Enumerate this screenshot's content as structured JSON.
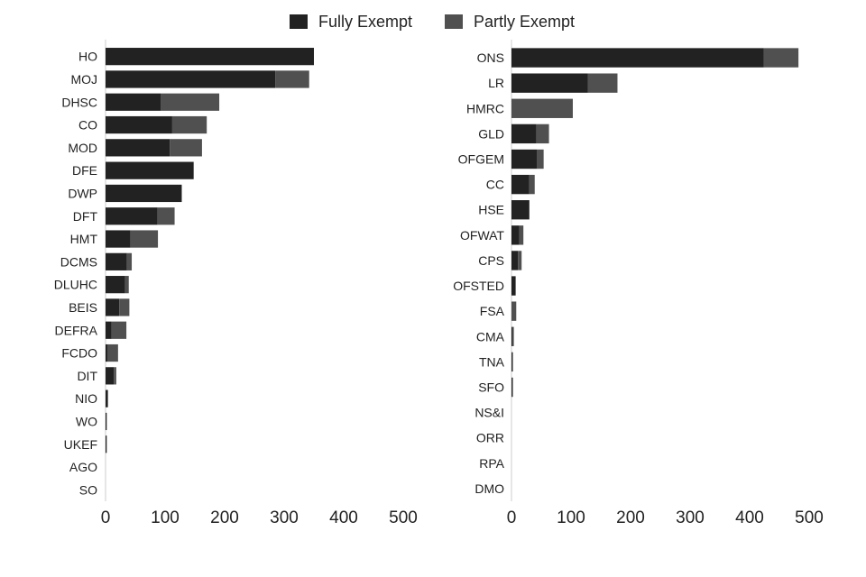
{
  "legend": {
    "fully_label": "Fully Exempt",
    "partly_label": "Partly Exempt"
  },
  "colors": {
    "fully": "#222222",
    "partly": "#505050",
    "axis": "#cccccc"
  },
  "chart_data": [
    {
      "type": "bar",
      "orientation": "horizontal",
      "stacked": true,
      "categories": [
        "HO",
        "MOJ",
        "DHSC",
        "CO",
        "MOD",
        "DFE",
        "DWP",
        "DFT",
        "HMT",
        "DCMS",
        "DLUHC",
        "BEIS",
        "DEFRA",
        "FCDO",
        "DIT",
        "NIO",
        "WO",
        "UKEF",
        "AGO",
        "SO"
      ],
      "series": [
        {
          "name": "Fully Exempt",
          "values": [
            350,
            285,
            93,
            112,
            108,
            148,
            128,
            87,
            42,
            36,
            33,
            23,
            10,
            3,
            14,
            4,
            2,
            2,
            0,
            0
          ]
        },
        {
          "name": "Partly Exempt",
          "values": [
            0,
            57,
            98,
            58,
            54,
            0,
            0,
            29,
            46,
            8,
            6,
            17,
            25,
            18,
            4,
            0,
            0,
            0,
            0,
            0
          ]
        }
      ],
      "xlim": [
        0,
        500
      ],
      "xticks": [
        "0",
        "100",
        "200",
        "300",
        "400",
        "500"
      ],
      "grid": false,
      "legend": "top-center"
    },
    {
      "type": "bar",
      "orientation": "horizontal",
      "stacked": true,
      "categories": [
        "ONS",
        "LR",
        "HMRC",
        "GLD",
        "OFGEM",
        "CC",
        "HSE",
        "OFWAT",
        "CPS",
        "OFSTED",
        "FSA",
        "CMA",
        "TNA",
        "SFO",
        "NS&I",
        "ORR",
        "RPA",
        "DMO"
      ],
      "series": [
        {
          "name": "Fully Exempt",
          "values": [
            424,
            128,
            0,
            42,
            43,
            30,
            30,
            13,
            11,
            7,
            0,
            2,
            1,
            1,
            0,
            0,
            0,
            0
          ]
        },
        {
          "name": "Partly Exempt",
          "values": [
            58,
            50,
            103,
            21,
            11,
            9,
            0,
            7,
            6,
            0,
            8,
            2,
            1,
            1,
            0,
            0,
            0,
            0
          ]
        }
      ],
      "xlim": [
        0,
        500
      ],
      "xticks": [
        "0",
        "100",
        "200",
        "300",
        "400",
        "500"
      ],
      "grid": false,
      "legend": "top-center"
    }
  ]
}
